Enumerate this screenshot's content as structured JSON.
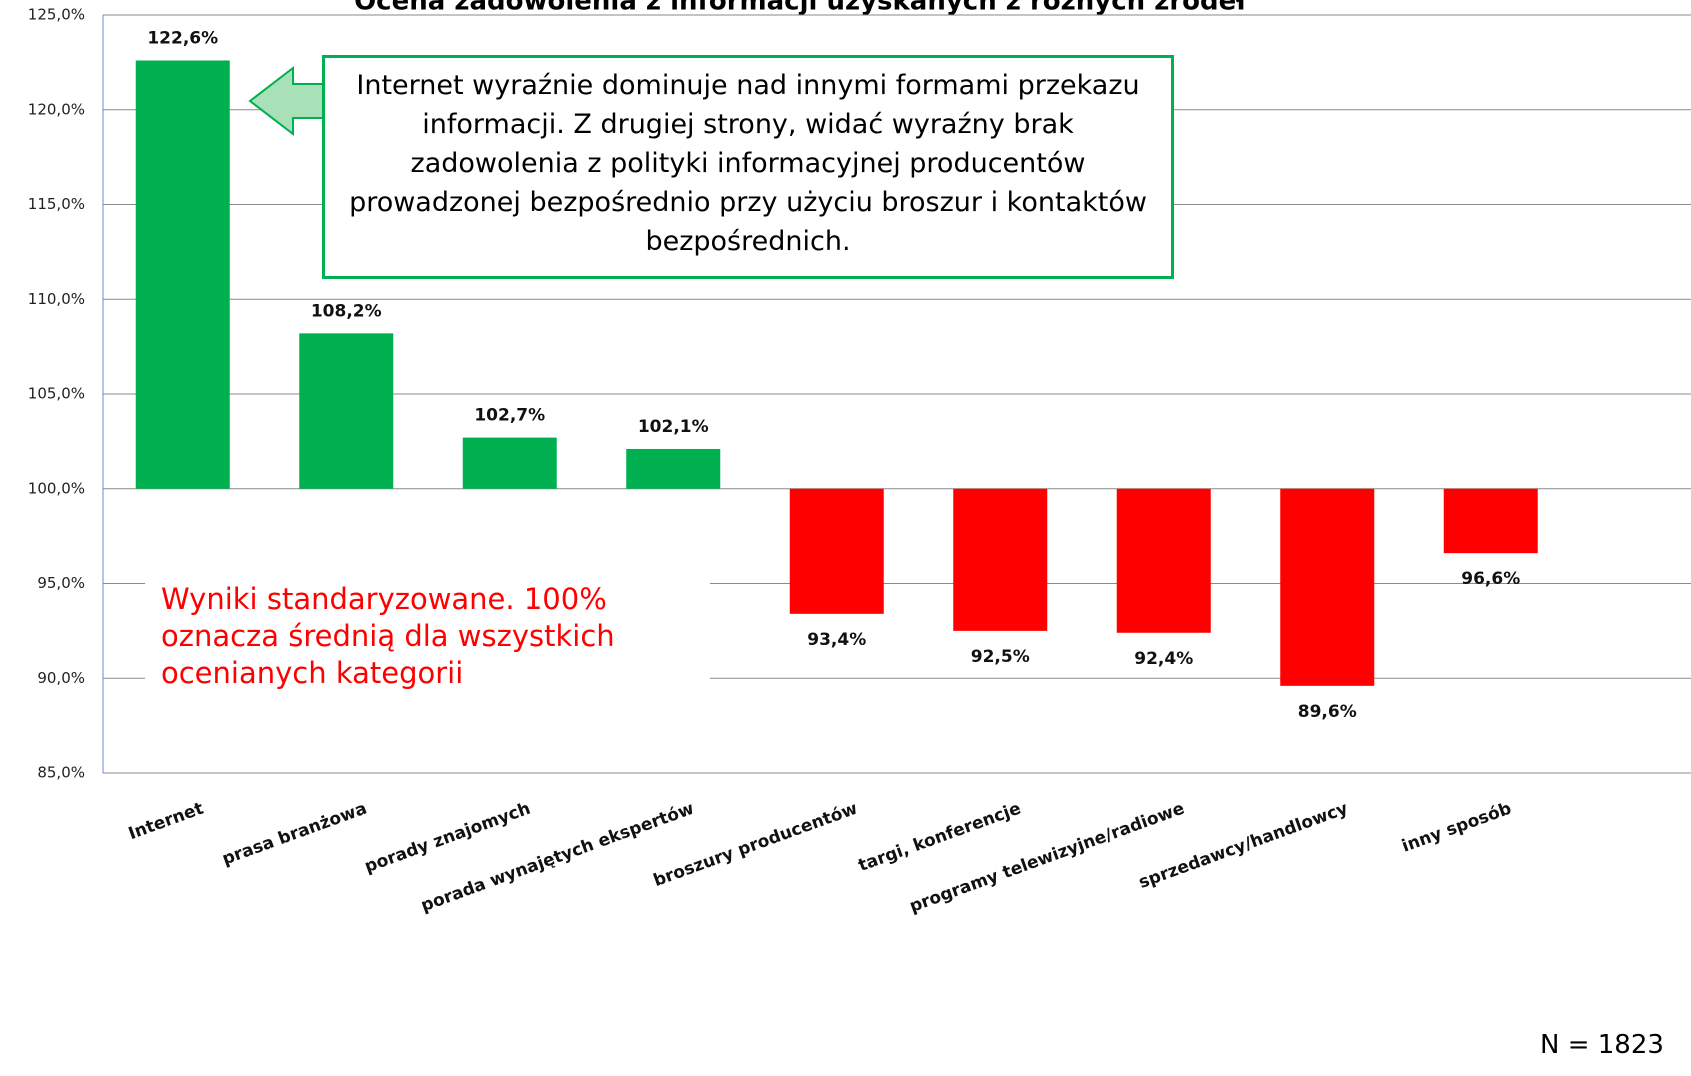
{
  "chart_data": {
    "type": "bar",
    "title": "Ocena zadowolenia z informacji uzyskanych z różnych źródeł",
    "categories": [
      "Internet",
      "prasa branżowa",
      "porady znajomych",
      "porada wynajętych ekspertów",
      "broszury producentów",
      "targi, konferencje",
      "programy telewizyjne/radiowe",
      "sprzedawcy/handlowcy",
      "inny sposób"
    ],
    "values": [
      122.6,
      108.2,
      102.7,
      102.1,
      93.4,
      92.5,
      92.4,
      89.6,
      96.6
    ],
    "value_labels": [
      "122,6%",
      "108,2%",
      "102,7%",
      "102,1%",
      "93,4%",
      "92,5%",
      "92,4%",
      "89,6%",
      "96,6%"
    ],
    "colors": [
      "#00b050",
      "#00b050",
      "#00b050",
      "#00b050",
      "#ff0000",
      "#ff0000",
      "#ff0000",
      "#ff0000",
      "#ff0000"
    ],
    "baseline": 100,
    "ylim": [
      85,
      125
    ],
    "yticks": [
      {
        "value": 85,
        "label": "85,0%"
      },
      {
        "value": 90,
        "label": "90,0%"
      },
      {
        "value": 95,
        "label": "95,0%"
      },
      {
        "value": 100,
        "label": "100,0%"
      },
      {
        "value": 105,
        "label": "105,0%"
      },
      {
        "value": 110,
        "label": "110,0%"
      },
      {
        "value": 115,
        "label": "115,0%"
      },
      {
        "value": 120,
        "label": "120,0%"
      },
      {
        "value": 125,
        "label": "125,0%"
      }
    ],
    "grid": true,
    "annotations": [
      "Internet wyraźnie dominuje nad innymi formami przekazu informacji. Z drugiej strony, widać wyraźny brak zadowolenia z polityki informacyjnej producentów prowadzonej bezpośrednio przy użyciu broszur i kontaktów bezpośrednich.",
      "Wyniki standaryzowane. 100% oznacza średnią dla wszystkich ocenianych kategorii",
      "N = 1823"
    ]
  }
}
